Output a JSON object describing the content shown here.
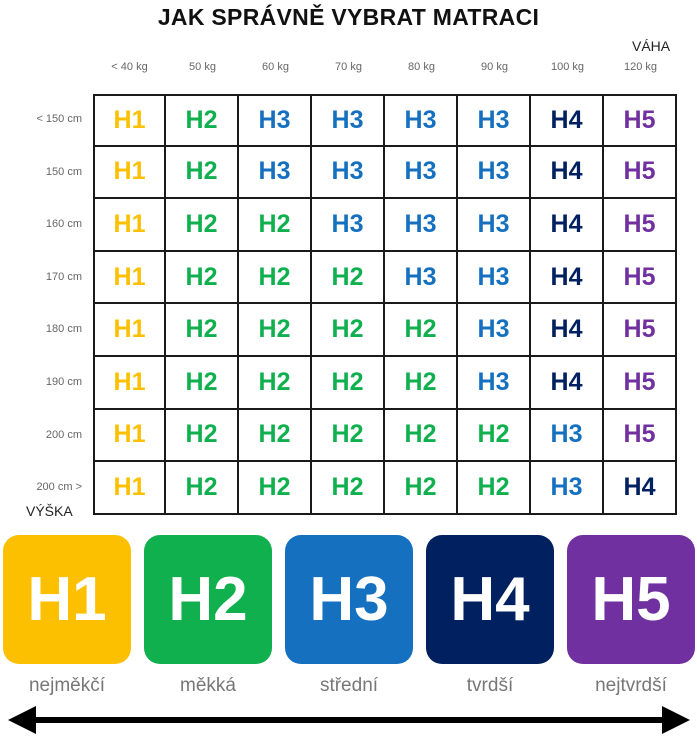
{
  "title": "JAK SPRÁVNĚ VYBRAT MATRACI",
  "weight_axis_label": "VÁHA",
  "height_axis_label": "VÝŠKA",
  "weights": [
    "< 40 kg",
    "50 kg",
    "60 kg",
    "70 kg",
    "80 kg",
    "90 kg",
    "100 kg",
    "120 kg"
  ],
  "heights": [
    "< 150 cm",
    "150 cm",
    "160 cm",
    "170 cm",
    "180 cm",
    "190 cm",
    "200 cm",
    "200 cm >"
  ],
  "grid": [
    [
      "H1",
      "H2",
      "H3",
      "H3",
      "H3",
      "H3",
      "H4",
      "H5"
    ],
    [
      "H1",
      "H2",
      "H3",
      "H3",
      "H3",
      "H3",
      "H4",
      "H5"
    ],
    [
      "H1",
      "H2",
      "H2",
      "H3",
      "H3",
      "H3",
      "H4",
      "H5"
    ],
    [
      "H1",
      "H2",
      "H2",
      "H2",
      "H3",
      "H3",
      "H4",
      "H5"
    ],
    [
      "H1",
      "H2",
      "H2",
      "H2",
      "H2",
      "H3",
      "H4",
      "H5"
    ],
    [
      "H1",
      "H2",
      "H2",
      "H2",
      "H2",
      "H3",
      "H4",
      "H5"
    ],
    [
      "H1",
      "H2",
      "H2",
      "H2",
      "H2",
      "H2",
      "H3",
      "H5"
    ],
    [
      "H1",
      "H2",
      "H2",
      "H2",
      "H2",
      "H2",
      "H3",
      "H4"
    ]
  ],
  "firmness": [
    {
      "code": "H1",
      "label": "nejměkčí",
      "color": "#fcc000"
    },
    {
      "code": "H2",
      "label": "měkká",
      "color": "#10b04f"
    },
    {
      "code": "H3",
      "label": "střední",
      "color": "#1570c0"
    },
    {
      "code": "H4",
      "label": "tvrdší",
      "color": "#002060"
    },
    {
      "code": "H5",
      "label": "nejtvrdší",
      "color": "#7030a0"
    }
  ],
  "arrow": "double-headed-arrow"
}
